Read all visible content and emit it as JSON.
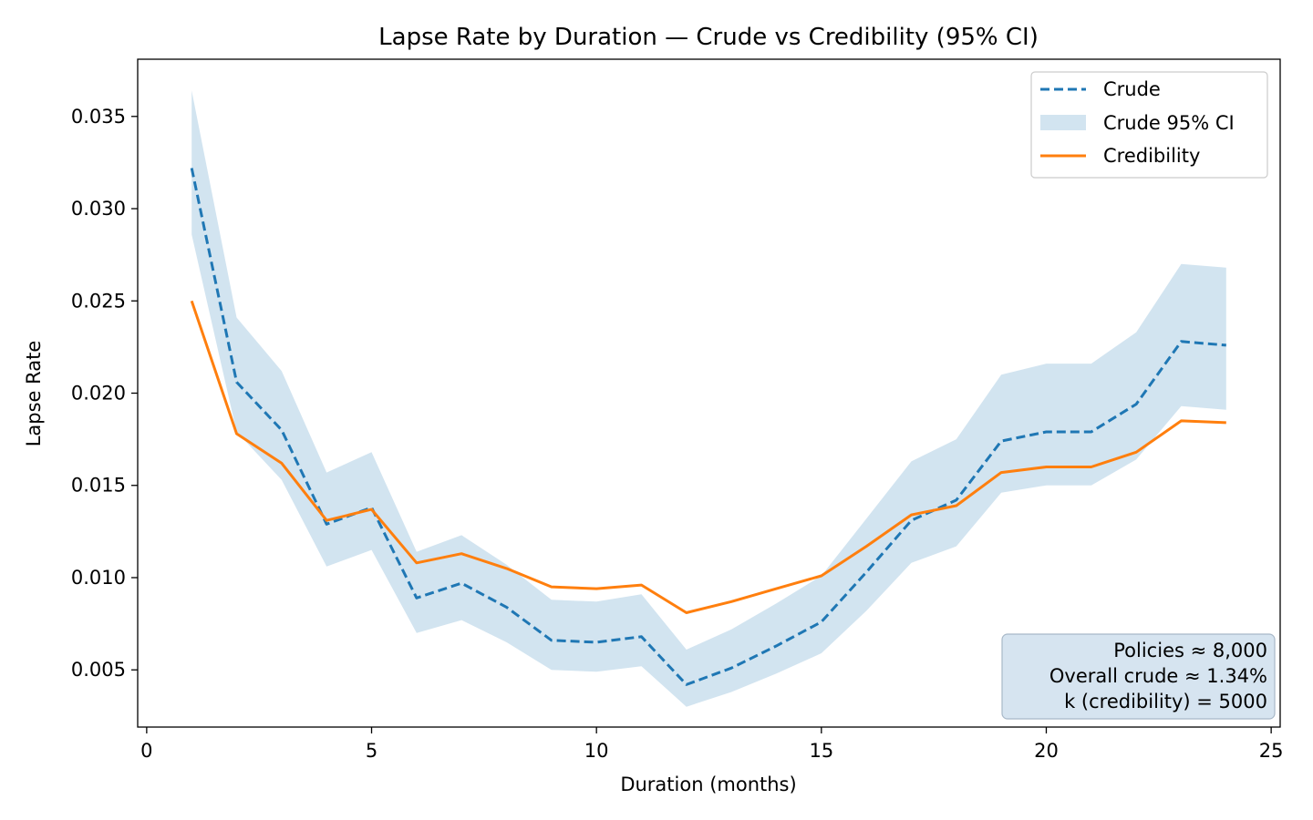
{
  "chart_data": {
    "type": "line",
    "title": "Lapse Rate by Duration — Crude vs Credibility (95% CI)",
    "xlabel": "Duration (months)",
    "ylabel": "Lapse Rate",
    "xlim": [
      -0.2,
      25.2
    ],
    "ylim": [
      0.0019,
      0.0381
    ],
    "xticks": [
      0,
      5,
      10,
      15,
      20,
      25
    ],
    "xtick_labels": [
      "0",
      "5",
      "10",
      "15",
      "20",
      "25"
    ],
    "yticks": [
      0.005,
      0.01,
      0.015,
      0.02,
      0.025,
      0.03,
      0.035
    ],
    "ytick_labels": [
      "0.005",
      "0.010",
      "0.015",
      "0.020",
      "0.025",
      "0.030",
      "0.035"
    ],
    "grid": false,
    "legend_position": "top-right",
    "x": [
      1,
      2,
      3,
      4,
      5,
      6,
      7,
      8,
      9,
      10,
      11,
      12,
      13,
      14,
      15,
      16,
      17,
      18,
      19,
      20,
      21,
      22,
      23,
      24
    ],
    "series": [
      {
        "name": "Crude",
        "style": "dashed",
        "color": "#1f77b4",
        "values": [
          0.0322,
          0.0206,
          0.018,
          0.0129,
          0.0138,
          0.0089,
          0.0097,
          0.0084,
          0.0066,
          0.0065,
          0.0068,
          0.0042,
          0.0051,
          0.0063,
          0.0076,
          0.0103,
          0.0131,
          0.0142,
          0.0174,
          0.0179,
          0.0179,
          0.0194,
          0.0228,
          0.0226
        ]
      },
      {
        "name": "Crude 95% CI",
        "style": "band",
        "color": "#1f77b4",
        "lower": [
          0.0286,
          0.0179,
          0.0153,
          0.0106,
          0.0115,
          0.007,
          0.0077,
          0.0065,
          0.005,
          0.0049,
          0.0052,
          0.003,
          0.0038,
          0.0048,
          0.0059,
          0.0082,
          0.0108,
          0.0117,
          0.0146,
          0.015,
          0.015,
          0.0164,
          0.0193,
          0.0191
        ],
        "upper": [
          0.0364,
          0.0241,
          0.0212,
          0.0157,
          0.0168,
          0.0114,
          0.0123,
          0.0107,
          0.0088,
          0.0087,
          0.0091,
          0.0061,
          0.0072,
          0.0086,
          0.0101,
          0.0132,
          0.0163,
          0.0175,
          0.021,
          0.0216,
          0.0216,
          0.0233,
          0.027,
          0.0268
        ]
      },
      {
        "name": "Credibility",
        "style": "solid",
        "color": "#ff7f0e",
        "values": [
          0.025,
          0.0178,
          0.0162,
          0.0131,
          0.0137,
          0.0108,
          0.0113,
          0.0105,
          0.0095,
          0.0094,
          0.0096,
          0.0081,
          0.0087,
          0.0094,
          0.0101,
          0.0117,
          0.0134,
          0.0139,
          0.0157,
          0.016,
          0.016,
          0.0168,
          0.0185,
          0.0184
        ]
      }
    ],
    "annotation_lines": [
      "Policies ≈ 8,000",
      "Overall crude ≈ 1.34%",
      "k (credibility) = 5000"
    ]
  }
}
